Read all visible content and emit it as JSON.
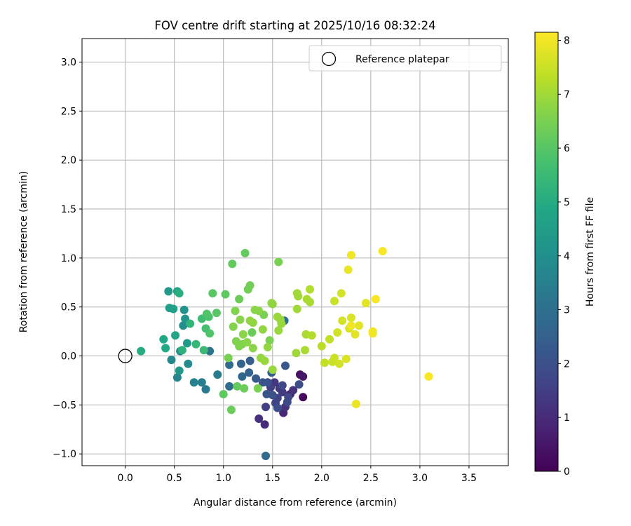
{
  "chart_data": {
    "type": "scatter",
    "title": "FOV centre drift starting at 2025/10/16 08:32:24",
    "xlabel": "Angular distance from reference (arcmin)",
    "ylabel": "Rotation from reference (arcmin)",
    "xlim": [
      -0.44,
      3.9
    ],
    "ylim": [
      -1.12,
      3.24
    ],
    "x_ticks": [
      0.0,
      0.5,
      1.0,
      1.5,
      2.0,
      2.5,
      3.0,
      3.5
    ],
    "x_tick_labels": [
      "0.0",
      "0.5",
      "1.0",
      "1.5",
      "2.0",
      "2.5",
      "3.0",
      "3.5"
    ],
    "y_ticks": [
      -1.0,
      -0.5,
      0.0,
      0.5,
      1.0,
      1.5,
      2.0,
      2.5,
      3.0
    ],
    "y_tick_labels": [
      "−1.0",
      "−0.5",
      "0.0",
      "0.5",
      "1.0",
      "1.5",
      "2.0",
      "2.5",
      "3.0"
    ],
    "grid": true,
    "legend": {
      "position": "top-right",
      "entries": [
        "Reference platepar"
      ]
    },
    "reference_point": {
      "x": 0.0,
      "y": 0.0,
      "marker": "open-circle"
    },
    "colorbar": {
      "label": "Hours from first FF file",
      "colormap": "viridis",
      "range": [
        0,
        8.15
      ],
      "ticks": [
        0,
        1,
        2,
        3,
        4,
        5,
        6,
        7,
        8
      ],
      "tick_labels": [
        "0",
        "1",
        "2",
        "3",
        "4",
        "5",
        "6",
        "7",
        "8"
      ]
    },
    "series": [
      {
        "points": [
          [
            1.81,
            -0.42,
            0.2
          ],
          [
            1.78,
            -0.19,
            0.4
          ],
          [
            1.81,
            -0.21,
            0.5
          ],
          [
            1.68,
            -0.39,
            0.7
          ],
          [
            1.61,
            -0.58,
            0.9
          ],
          [
            1.42,
            -0.7,
            1.0
          ],
          [
            1.36,
            -0.64,
            1.1
          ],
          [
            1.63,
            -0.52,
            1.2
          ],
          [
            1.71,
            -0.35,
            1.2
          ],
          [
            1.52,
            -0.27,
            1.3
          ],
          [
            1.57,
            -0.33,
            1.3
          ],
          [
            1.6,
            -0.37,
            1.4
          ],
          [
            1.48,
            -0.32,
            1.5
          ],
          [
            1.43,
            -0.52,
            1.5
          ],
          [
            1.53,
            -0.48,
            1.6
          ],
          [
            1.55,
            -0.43,
            1.6
          ],
          [
            1.66,
            -0.42,
            1.7
          ],
          [
            1.6,
            -0.3,
            1.8
          ],
          [
            1.65,
            -0.47,
            1.8
          ],
          [
            1.77,
            -0.29,
            1.9
          ],
          [
            1.55,
            -0.53,
            1.9
          ],
          [
            1.45,
            -0.27,
            2.0
          ],
          [
            1.5,
            -0.4,
            2.0
          ],
          [
            1.4,
            -0.27,
            2.1
          ],
          [
            1.44,
            -0.39,
            2.1
          ],
          [
            1.63,
            -0.1,
            2.2
          ],
          [
            1.49,
            -0.17,
            2.3
          ],
          [
            1.33,
            -0.23,
            2.3
          ],
          [
            1.27,
            -0.05,
            2.4
          ],
          [
            1.26,
            -0.17,
            2.5
          ],
          [
            1.18,
            -0.08,
            2.6
          ],
          [
            1.19,
            -0.21,
            2.7
          ],
          [
            1.43,
            -1.02,
            2.8
          ],
          [
            1.06,
            -0.09,
            2.8
          ],
          [
            1.06,
            -0.31,
            2.9
          ],
          [
            1.62,
            0.36,
            3.0
          ],
          [
            0.86,
            0.05,
            3.2
          ],
          [
            0.82,
            -0.34,
            3.3
          ],
          [
            0.94,
            -0.19,
            3.4
          ],
          [
            0.78,
            -0.27,
            3.5
          ],
          [
            0.7,
            -0.27,
            3.6
          ],
          [
            0.53,
            -0.22,
            3.7
          ],
          [
            0.47,
            -0.04,
            3.8
          ],
          [
            0.64,
            -0.08,
            3.9
          ],
          [
            0.56,
            0.05,
            3.9
          ],
          [
            0.59,
            0.31,
            4.0
          ],
          [
            0.6,
            0.47,
            4.1
          ],
          [
            0.61,
            0.38,
            4.2
          ],
          [
            0.55,
            -0.15,
            4.3
          ],
          [
            0.63,
            0.13,
            4.4
          ],
          [
            0.44,
            0.66,
            4.4
          ],
          [
            0.45,
            0.49,
            4.5
          ],
          [
            0.49,
            0.48,
            4.6
          ],
          [
            0.53,
            0.66,
            4.7
          ],
          [
            0.51,
            0.21,
            4.8
          ],
          [
            0.41,
            0.08,
            4.9
          ],
          [
            0.39,
            0.17,
            4.9
          ],
          [
            0.16,
            0.05,
            5.0
          ],
          [
            0.55,
            0.64,
            5.1
          ],
          [
            0.58,
            0.06,
            5.2
          ],
          [
            0.66,
            0.33,
            5.3
          ],
          [
            0.72,
            0.12,
            5.4
          ],
          [
            0.8,
            0.06,
            5.5
          ],
          [
            0.78,
            0.38,
            5.6
          ],
          [
            0.82,
            0.28,
            5.7
          ],
          [
            0.85,
            0.4,
            5.8
          ],
          [
            0.86,
            0.23,
            5.9
          ],
          [
            0.83,
            0.43,
            5.9
          ],
          [
            0.93,
            0.44,
            6.0
          ],
          [
            0.89,
            0.64,
            6.0
          ],
          [
            1.0,
            -0.39,
            6.1
          ],
          [
            1.02,
            0.63,
            6.1
          ],
          [
            1.09,
            0.94,
            6.2
          ],
          [
            1.14,
            -0.31,
            6.2
          ],
          [
            1.22,
            1.05,
            6.2
          ],
          [
            1.16,
            0.58,
            6.3
          ],
          [
            1.21,
            -0.33,
            6.3
          ],
          [
            1.08,
            -0.55,
            6.3
          ],
          [
            1.29,
            0.24,
            6.3
          ],
          [
            1.27,
            0.72,
            6.4
          ],
          [
            1.25,
            0.68,
            6.4
          ],
          [
            1.35,
            -0.33,
            6.5
          ],
          [
            1.41,
            0.42,
            6.5
          ],
          [
            1.47,
            0.16,
            6.5
          ],
          [
            1.56,
            0.96,
            6.5
          ],
          [
            1.13,
            0.15,
            6.6
          ],
          [
            1.16,
            0.1,
            6.6
          ],
          [
            1.19,
            0.12,
            6.6
          ],
          [
            1.24,
            0.14,
            6.7
          ],
          [
            1.3,
            0.08,
            6.7
          ],
          [
            1.32,
            0.47,
            6.7
          ],
          [
            1.36,
            0.46,
            6.7
          ],
          [
            1.4,
            0.27,
            6.8
          ],
          [
            1.45,
            0.09,
            6.8
          ],
          [
            1.49,
            0.54,
            6.8
          ],
          [
            1.5,
            0.53,
            6.8
          ],
          [
            1.55,
            0.4,
            6.9
          ],
          [
            1.56,
            0.26,
            6.9
          ],
          [
            1.58,
            0.37,
            6.9
          ],
          [
            1.59,
            0.33,
            6.9
          ],
          [
            1.1,
            0.3,
            6.6
          ],
          [
            1.05,
            -0.02,
            6.5
          ],
          [
            1.12,
            0.46,
            6.6
          ],
          [
            1.17,
            0.37,
            6.7
          ],
          [
            1.2,
            0.22,
            6.7
          ],
          [
            1.27,
            0.36,
            6.8
          ],
          [
            1.3,
            0.34,
            6.8
          ],
          [
            1.38,
            -0.02,
            6.8
          ],
          [
            1.42,
            -0.05,
            6.9
          ],
          [
            1.5,
            -0.14,
            6.9
          ],
          [
            1.74,
            0.03,
            7.0
          ],
          [
            1.75,
            0.64,
            7.0
          ],
          [
            1.76,
            0.61,
            7.0
          ],
          [
            1.75,
            0.48,
            7.0
          ],
          [
            1.85,
            0.58,
            7.1
          ],
          [
            1.88,
            0.55,
            7.1
          ],
          [
            1.84,
            0.22,
            7.1
          ],
          [
            1.83,
            0.06,
            7.1
          ],
          [
            1.88,
            0.68,
            7.2
          ],
          [
            1.9,
            0.21,
            7.2
          ],
          [
            2.0,
            0.1,
            7.3
          ],
          [
            2.03,
            -0.07,
            7.4
          ],
          [
            2.08,
            0.17,
            7.4
          ],
          [
            2.13,
            -0.02,
            7.5
          ],
          [
            2.11,
            -0.06,
            7.5
          ],
          [
            2.13,
            0.56,
            7.5
          ],
          [
            2.18,
            -0.08,
            7.6
          ],
          [
            2.16,
            0.24,
            7.6
          ],
          [
            2.2,
            0.64,
            7.6
          ],
          [
            2.21,
            0.36,
            7.6
          ],
          [
            2.25,
            -0.03,
            7.7
          ],
          [
            2.28,
            0.28,
            7.7
          ],
          [
            2.3,
            0.39,
            7.7
          ],
          [
            2.34,
            0.22,
            7.8
          ],
          [
            2.38,
            0.31,
            7.8
          ],
          [
            2.45,
            0.54,
            7.8
          ],
          [
            2.35,
            -0.49,
            7.9
          ],
          [
            2.27,
            0.88,
            7.9
          ],
          [
            2.3,
            1.03,
            8.0
          ],
          [
            2.52,
            0.23,
            8.0
          ],
          [
            2.52,
            0.25,
            8.0
          ],
          [
            2.55,
            0.58,
            8.1
          ],
          [
            2.62,
            1.07,
            8.1
          ],
          [
            3.09,
            -0.21,
            8.1
          ],
          [
            2.3,
            0.31,
            8.0
          ]
        ]
      }
    ]
  }
}
